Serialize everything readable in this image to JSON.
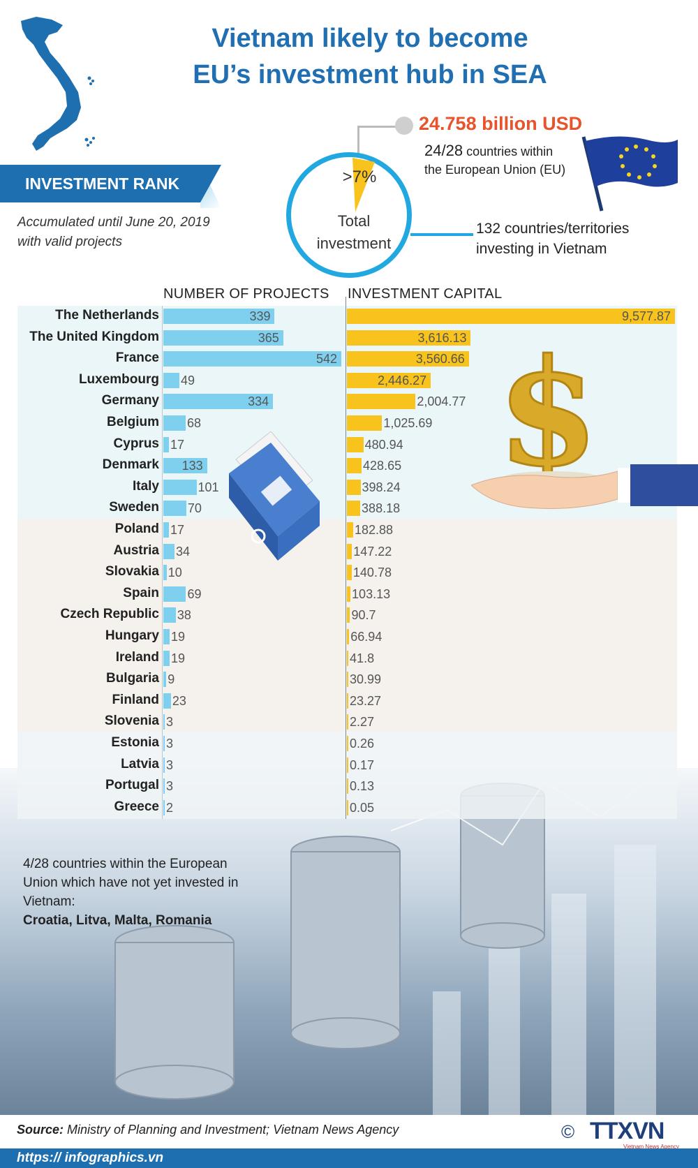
{
  "title": {
    "line1": "Vietnam likely to become",
    "line2": "EU’s investment hub in SEA"
  },
  "rank_banner": "INVESTMENT RANK",
  "note": {
    "line1": "Accumulated until June 20, 2019",
    "line2": "with valid projects"
  },
  "summary": {
    "pct": ">7%",
    "circle_line1": "Total",
    "circle_line2": "investment",
    "total_usd": "24.758 billion USD",
    "eu_count": "24/28",
    "eu_line1": " countries within",
    "eu_line2": "the European Union (EU)",
    "countries_line1": "132 countries/territories",
    "countries_line2": "investing in Vietnam"
  },
  "chart_data": {
    "type": "bar",
    "col1_label": "NUMBER OF PROJECTS",
    "col2_label": "INVESTMENT CAPITAL",
    "categories": [
      "The Netherlands",
      "The United Kingdom",
      "France",
      "Luxembourg",
      "Germany",
      "Belgium",
      "Cyprus",
      "Denmark",
      "Italy",
      "Sweden",
      "Poland",
      "Austria",
      "Slovakia",
      "Spain",
      "Czech Republic",
      "Hungary",
      "Ireland",
      "Bulgaria",
      "Finland",
      "Slovenia",
      "Estonia",
      "Latvia",
      "Portugal",
      "Greece"
    ],
    "projects": [
      339,
      365,
      542,
      49,
      334,
      68,
      17,
      133,
      101,
      70,
      17,
      34,
      10,
      69,
      38,
      19,
      19,
      9,
      23,
      3,
      3,
      3,
      3,
      2
    ],
    "capital": [
      9577.87,
      3616.13,
      3560.66,
      2446.27,
      2004.77,
      1025.69,
      480.94,
      428.65,
      398.24,
      388.18,
      182.88,
      147.22,
      140.78,
      103.13,
      90.7,
      66.94,
      41.8,
      30.99,
      23.27,
      2.27,
      0.26,
      0.17,
      0.13,
      0.05
    ],
    "capital_labels": [
      "9,577.87",
      "3,616.13",
      "3,560.66",
      "2,446.27",
      "2,004.77",
      "1,025.69",
      "480.94",
      "428.65",
      "398.24",
      "388.18",
      "182.88",
      "147.22",
      "140.78",
      "103.13",
      "90.7",
      "66.94",
      "41.8",
      "30.99",
      "23.27",
      "2.27",
      "0.26",
      "0.17",
      "0.13",
      "0.05"
    ]
  },
  "not_invested": {
    "line1": "4/28 countries within the European",
    "line2": "Union which have not yet invested in",
    "line3": "Vietnam:",
    "list": "Croatia, Litva, Malta, Romania"
  },
  "source": {
    "label": "Source:",
    "text": " Ministry of Planning and Investment; Vietnam News Agency"
  },
  "logo": {
    "copyright": "©",
    "name": "TTXVN",
    "sub": "Vietnam News Agency"
  },
  "url": "https:// infographics.vn",
  "colors": {
    "blue": "#1e6fb0",
    "project_bar": "#7fd0ef",
    "capital_bar": "#f7c31c",
    "highlight": "#e8532b"
  }
}
